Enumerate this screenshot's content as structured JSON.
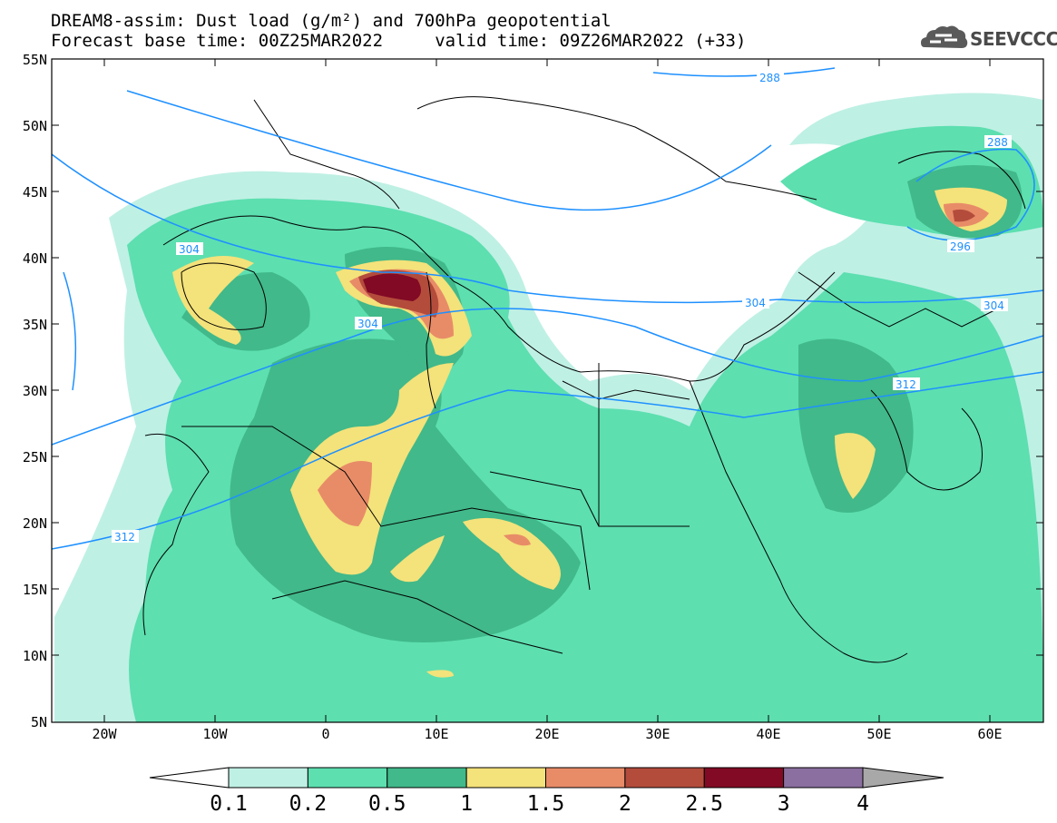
{
  "title": {
    "line1": "DREAM8-assim: Dust load (g/m²) and 700hPa geopotential",
    "line2": "Forecast base time: 00Z25MAR2022     valid time: 09Z26MAR2022 (+33)"
  },
  "logo": {
    "text": "SEEVCCC",
    "icon": "cloud-icon"
  },
  "axes": {
    "lat_labels": [
      "55N",
      "50N",
      "45N",
      "40N",
      "35N",
      "30N",
      "25N",
      "20N",
      "15N",
      "10N",
      "5N"
    ],
    "lon_labels": [
      "20W",
      "10W",
      "0",
      "10E",
      "20E",
      "30E",
      "40E",
      "50E",
      "60E"
    ]
  },
  "contour_labels": [
    "288",
    "288",
    "296",
    "304",
    "304",
    "304",
    "304",
    "312",
    "312"
  ],
  "colorbar": {
    "ticks": [
      "0.1",
      "0.2",
      "0.5",
      "1",
      "1.5",
      "2",
      "2.5",
      "3",
      "4"
    ],
    "colors": [
      "#bff0e4",
      "#5ddfb0",
      "#41b98a",
      "#f4e27a",
      "#e88c68",
      "#b44c3c",
      "#820a24",
      "#8b6fa0"
    ],
    "under_color": "#ffffff",
    "over_color": "#a8a8a8"
  },
  "colors": {
    "contour": "#1e90ff",
    "coast": "#000000"
  }
}
